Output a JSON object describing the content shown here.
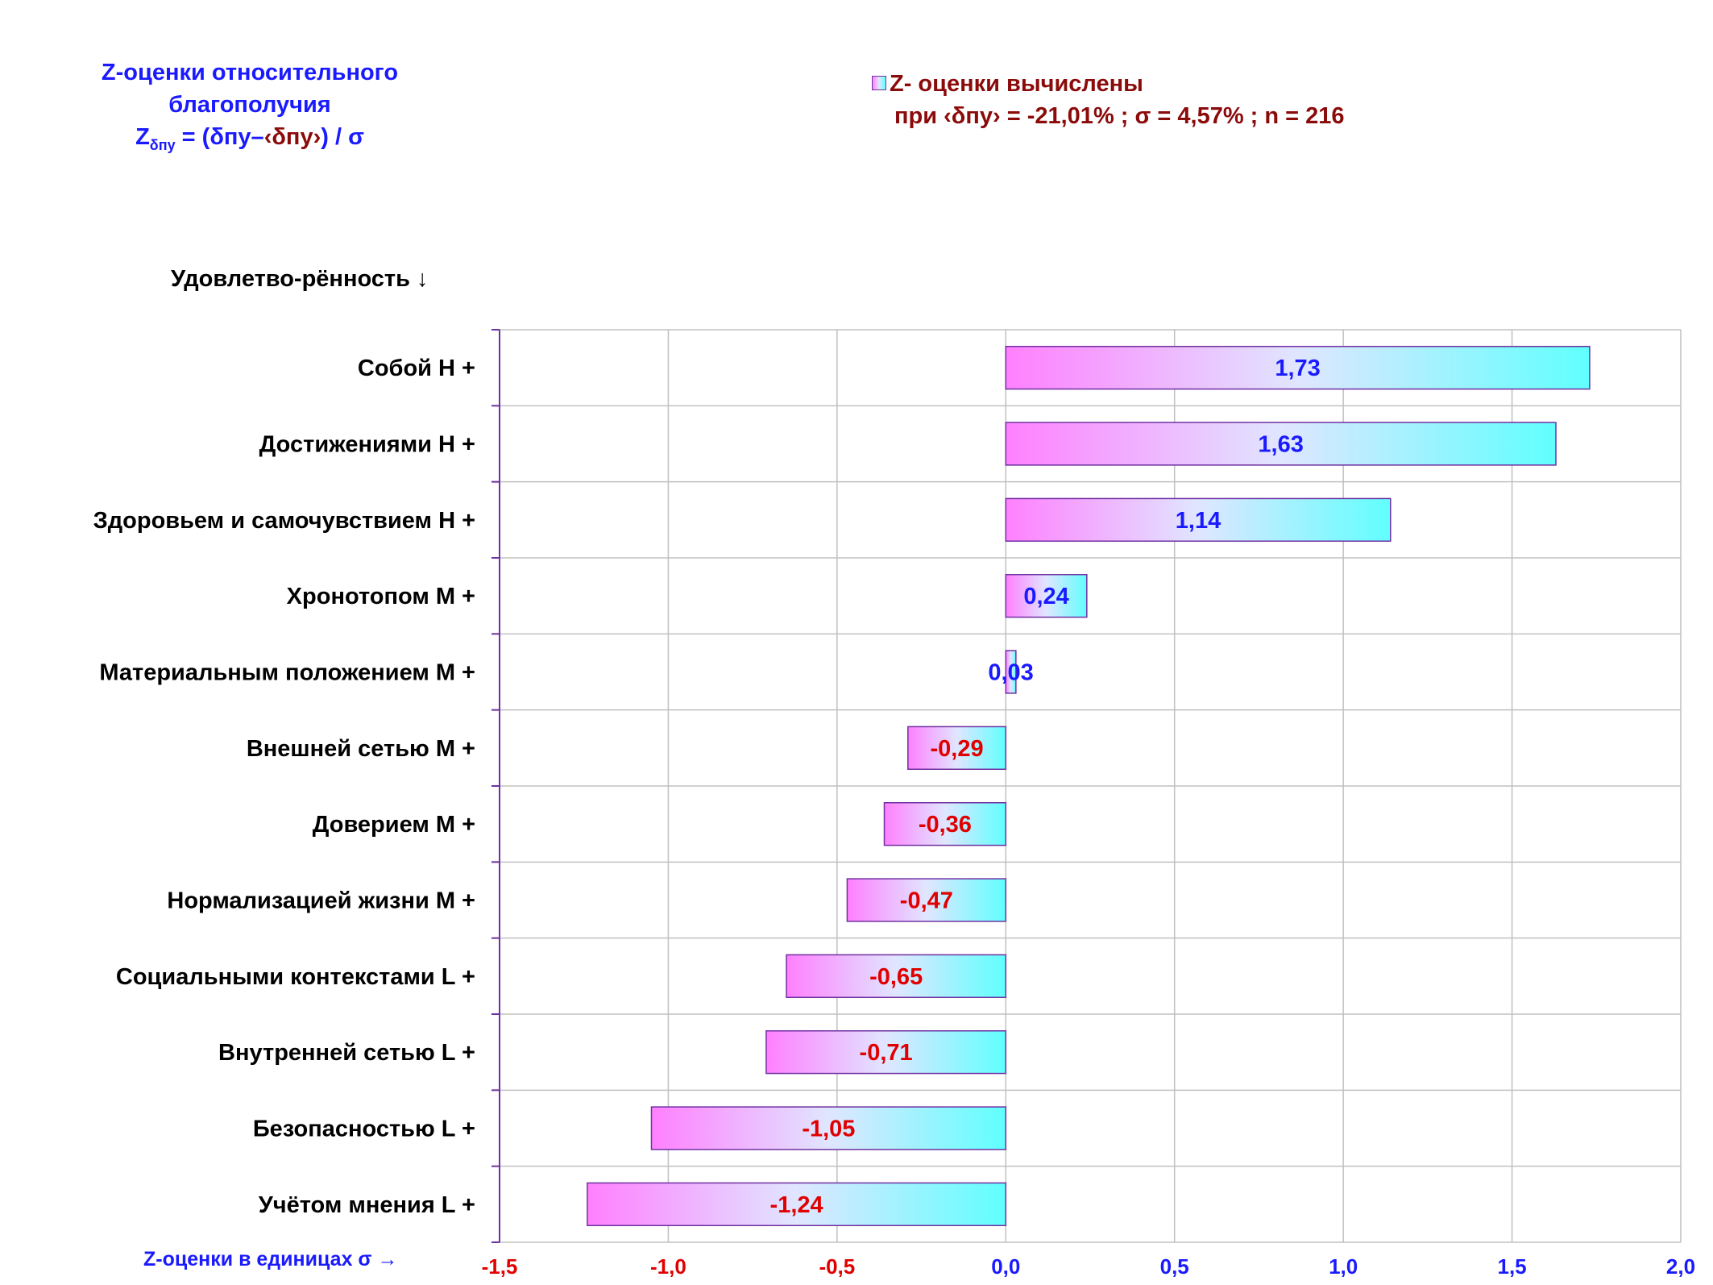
{
  "title": {
    "line1": "Z-оценки  относительного",
    "line2": "благополучия",
    "formula_z": "Z",
    "formula_sub": "δпу",
    "formula_eq": " = (δпу–",
    "formula_avg": "‹δпу›",
    "formula_tail": ") / σ"
  },
  "legend": {
    "series_label": "Z- оценки вычислены",
    "stats_text": "при ‹δпу› = -21,01% ; σ = 4,57% ; n = 216"
  },
  "colors": {
    "positive_label": "#1a1aff",
    "negative_label": "#e00000",
    "bar_start": "#ff80ff",
    "bar_mid": "#e0e6ff",
    "bar_end": "#60ffff",
    "bar_border": "#7030a0",
    "grid": "#c0c0c0",
    "axis": "#7030a0"
  },
  "chart_data": {
    "type": "bar",
    "orientation": "horizontal",
    "ylabel": "Удовлетво-рённость ↓",
    "xlabel": "Z-оценки в единицах σ →",
    "xlim": [
      -1.5,
      2.0
    ],
    "xticks": [
      -1.5,
      -1.0,
      -0.5,
      0.0,
      0.5,
      1.0,
      1.5,
      2.0
    ],
    "xtick_labels": [
      "-1,5",
      "-1,0",
      "-0,5",
      "0,0",
      "0,5",
      "1,0",
      "1,5",
      "2,0"
    ],
    "grid": true,
    "categories": [
      "Собой  Н +",
      "Достижениями  Н +",
      "Здоровьем и самочувствием  Н +",
      "Хронотопом  М +",
      "Материальным положением  М +",
      "Внешней сетью  М +",
      "Доверием  М +",
      "Нормализацией жизни  М +",
      "Социальными контекстами  L +",
      "Внутренней сетью  L +",
      "Безопасностью  L +",
      "Учётом мнения  L +"
    ],
    "values": [
      1.73,
      1.63,
      1.14,
      0.24,
      0.03,
      -0.29,
      -0.36,
      -0.47,
      -0.65,
      -0.71,
      -1.05,
      -1.24
    ],
    "value_labels": [
      "1,73",
      "1,63",
      "1,14",
      "0,24",
      "0,03",
      "-0,29",
      "-0,36",
      "-0,47",
      "-0,65",
      "-0,71",
      "-1,05",
      "-1,24"
    ]
  }
}
